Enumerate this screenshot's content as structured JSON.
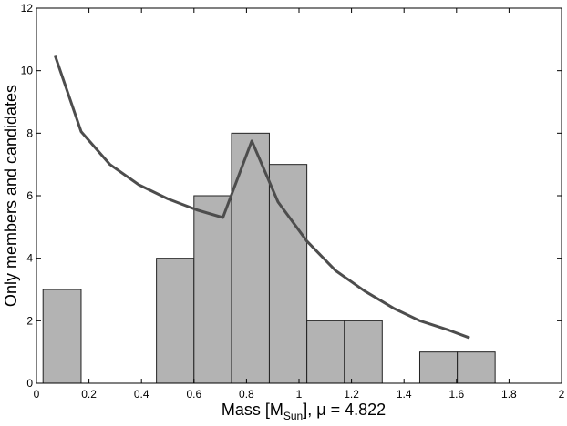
{
  "chart_data": {
    "type": "bar",
    "xlabel_parts": {
      "prefix": "Mass [M",
      "subscript": "Sun",
      "suffix": "], μ = 4.822"
    },
    "ylabel": "Only members and candidates",
    "xlim": [
      0,
      2
    ],
    "ylim": [
      0,
      12
    ],
    "x_ticks": [
      0,
      0.2,
      0.4,
      0.6,
      0.8,
      1,
      1.2,
      1.4,
      1.6,
      1.8,
      2
    ],
    "x_tick_labels": [
      "0",
      "0.2",
      "0.4",
      "0.6",
      "0.8",
      "1",
      "1.2",
      "1.4",
      "1.6",
      "1.8",
      "2"
    ],
    "y_ticks": [
      0,
      2,
      4,
      6,
      8,
      10,
      12
    ],
    "y_tick_labels": [
      "0",
      "2",
      "4",
      "6",
      "8",
      "10",
      "12"
    ],
    "bin_edges": [
      0.025,
      0.17,
      0.313,
      0.457,
      0.6,
      0.743,
      0.887,
      1.03,
      1.173,
      1.317,
      1.46,
      1.603,
      1.747
    ],
    "histogram_values": [
      3,
      0,
      0,
      4,
      6,
      8,
      7,
      2,
      2,
      0,
      1,
      1
    ],
    "line": {
      "x": [
        0.07,
        0.17,
        0.28,
        0.39,
        0.5,
        0.61,
        0.71,
        0.82,
        0.92,
        1.03,
        1.14,
        1.25,
        1.36,
        1.46,
        1.57,
        1.65
      ],
      "y": [
        10.5,
        8.05,
        7.0,
        6.35,
        5.9,
        5.55,
        5.3,
        7.75,
        5.8,
        4.55,
        3.6,
        2.95,
        2.4,
        2.0,
        1.7,
        1.45
      ]
    },
    "grid": false,
    "colors": {
      "bar_fill": "#b3b3b3",
      "bar_edge": "#222222",
      "line": "#4d4d4d"
    }
  }
}
